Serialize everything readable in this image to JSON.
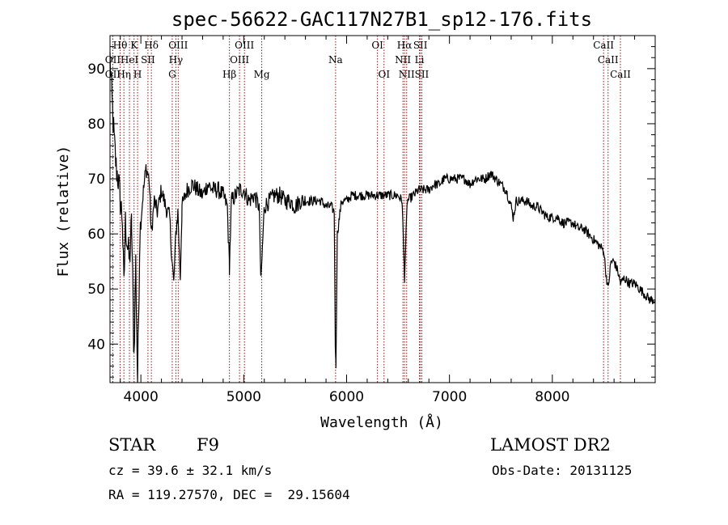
{
  "chart_data": {
    "type": "line",
    "title": "spec-56622-GAC117N27B1_sp12-176.fits",
    "xlabel": "Wavelength (Å)",
    "ylabel": "Flux (relative)",
    "xlim": [
      3700,
      9000
    ],
    "ylim": [
      33,
      96
    ],
    "xticks": [
      4000,
      5000,
      6000,
      7000,
      8000
    ],
    "yticks": [
      40,
      50,
      60,
      70,
      80,
      90
    ],
    "grid": false,
    "series": [
      {
        "color": "#000000",
        "points": [
          [
            3700,
            92
          ],
          [
            3720,
            84
          ],
          [
            3740,
            77
          ],
          [
            3760,
            72
          ],
          [
            3780,
            70
          ],
          [
            3800,
            66
          ],
          [
            3820,
            63
          ],
          [
            3835,
            50
          ],
          [
            3850,
            62
          ],
          [
            3870,
            58
          ],
          [
            3889,
            55
          ],
          [
            3910,
            62
          ],
          [
            3933,
            38
          ],
          [
            3950,
            55
          ],
          [
            3968,
            33
          ],
          [
            3990,
            60
          ],
          [
            4020,
            67
          ],
          [
            4050,
            72
          ],
          [
            4080,
            70
          ],
          [
            4102,
            60
          ],
          [
            4130,
            66
          ],
          [
            4160,
            64
          ],
          [
            4200,
            68
          ],
          [
            4240,
            65
          ],
          [
            4280,
            63
          ],
          [
            4300,
            56
          ],
          [
            4320,
            51
          ],
          [
            4340,
            60
          ],
          [
            4360,
            64
          ],
          [
            4383,
            52
          ],
          [
            4400,
            65
          ],
          [
            4450,
            68
          ],
          [
            4500,
            69
          ],
          [
            4550,
            68
          ],
          [
            4600,
            67
          ],
          [
            4650,
            69
          ],
          [
            4700,
            68
          ],
          [
            4750,
            68
          ],
          [
            4800,
            67
          ],
          [
            4840,
            65
          ],
          [
            4861,
            54
          ],
          [
            4880,
            66
          ],
          [
            4920,
            67
          ],
          [
            4960,
            68
          ],
          [
            5000,
            68
          ],
          [
            5050,
            66
          ],
          [
            5100,
            67
          ],
          [
            5150,
            65
          ],
          [
            5167,
            51
          ],
          [
            5183,
            58
          ],
          [
            5200,
            65
          ],
          [
            5250,
            66
          ],
          [
            5300,
            67
          ],
          [
            5350,
            67
          ],
          [
            5400,
            66
          ],
          [
            5450,
            66
          ],
          [
            5500,
            65
          ],
          [
            5550,
            66
          ],
          [
            5600,
            66
          ],
          [
            5650,
            66
          ],
          [
            5700,
            66
          ],
          [
            5750,
            66
          ],
          [
            5800,
            65
          ],
          [
            5850,
            65
          ],
          [
            5880,
            64
          ],
          [
            5890,
            40
          ],
          [
            5896,
            36
          ],
          [
            5910,
            60
          ],
          [
            5950,
            66
          ],
          [
            6000,
            66
          ],
          [
            6050,
            67
          ],
          [
            6100,
            67
          ],
          [
            6150,
            67
          ],
          [
            6200,
            67
          ],
          [
            6250,
            67
          ],
          [
            6300,
            67
          ],
          [
            6350,
            67
          ],
          [
            6400,
            67
          ],
          [
            6450,
            67
          ],
          [
            6500,
            67
          ],
          [
            6540,
            66
          ],
          [
            6563,
            52
          ],
          [
            6590,
            66
          ],
          [
            6650,
            67
          ],
          [
            6700,
            68
          ],
          [
            6750,
            68
          ],
          [
            6800,
            68
          ],
          [
            6850,
            69
          ],
          [
            6900,
            69
          ],
          [
            6950,
            70
          ],
          [
            7000,
            70
          ],
          [
            7050,
            70
          ],
          [
            7100,
            70
          ],
          [
            7150,
            70
          ],
          [
            7200,
            69
          ],
          [
            7250,
            70
          ],
          [
            7300,
            70
          ],
          [
            7350,
            70
          ],
          [
            7400,
            71
          ],
          [
            7450,
            70
          ],
          [
            7500,
            69
          ],
          [
            7550,
            68
          ],
          [
            7600,
            65
          ],
          [
            7620,
            63
          ],
          [
            7650,
            66
          ],
          [
            7700,
            66
          ],
          [
            7750,
            66
          ],
          [
            7800,
            65
          ],
          [
            7850,
            65
          ],
          [
            7900,
            64
          ],
          [
            7950,
            63
          ],
          [
            8000,
            63
          ],
          [
            8050,
            63
          ],
          [
            8100,
            62
          ],
          [
            8150,
            62
          ],
          [
            8200,
            62
          ],
          [
            8250,
            61
          ],
          [
            8300,
            61
          ],
          [
            8350,
            60
          ],
          [
            8400,
            59
          ],
          [
            8450,
            58
          ],
          [
            8500,
            57
          ],
          [
            8520,
            53
          ],
          [
            8542,
            50
          ],
          [
            8570,
            55
          ],
          [
            8600,
            55
          ],
          [
            8640,
            53
          ],
          [
            8662,
            51
          ],
          [
            8700,
            52
          ],
          [
            8750,
            51
          ],
          [
            8800,
            51
          ],
          [
            8850,
            50
          ],
          [
            8900,
            49
          ],
          [
            8950,
            48
          ],
          [
            9000,
            48
          ]
        ]
      }
    ],
    "line_markers": {
      "color": "#8b1a1a",
      "lines": [
        {
          "label": "Hθ",
          "x": 3798,
          "row": 1
        },
        {
          "label": "OII",
          "x": 3727,
          "row": 2
        },
        {
          "label": "OII",
          "x": 3727,
          "row": 3
        },
        {
          "label": "Hη",
          "x": 3835,
          "row": 3
        },
        {
          "label": "HeI",
          "x": 3889,
          "row": 2
        },
        {
          "label": "K",
          "x": 3934,
          "row": 1
        },
        {
          "label": "SII",
          "x": 4069,
          "row": 2
        },
        {
          "label": "H",
          "x": 3968,
          "row": 3
        },
        {
          "label": "Hδ",
          "x": 4102,
          "row": 1
        },
        {
          "label": "OIII",
          "x": 4363,
          "row": 1
        },
        {
          "label": "Hγ",
          "x": 4340,
          "row": 2
        },
        {
          "label": "G",
          "x": 4305,
          "row": 3
        },
        {
          "label": "Hβ",
          "x": 4861,
          "row": 3
        },
        {
          "label": "OIII",
          "x": 5007,
          "row": 1
        },
        {
          "label": "OIII",
          "x": 4959,
          "row": 2
        },
        {
          "label": "Mg",
          "x": 5175,
          "row": 3
        },
        {
          "label": "Na",
          "x": 5893,
          "row": 2
        },
        {
          "label": "OI",
          "x": 6300,
          "row": 1
        },
        {
          "label": "OI",
          "x": 6364,
          "row": 3
        },
        {
          "label": "Hα",
          "x": 6563,
          "row": 1
        },
        {
          "label": "SII",
          "x": 6717,
          "row": 1
        },
        {
          "label": "NII",
          "x": 6548,
          "row": 2
        },
        {
          "label": "Li",
          "x": 6708,
          "row": 2
        },
        {
          "label": "NII",
          "x": 6584,
          "row": 3
        },
        {
          "label": "SII",
          "x": 6731,
          "row": 3
        },
        {
          "label": "CaII",
          "x": 8498,
          "row": 1
        },
        {
          "label": "CaII",
          "x": 8542,
          "row": 2
        },
        {
          "label": "CaII",
          "x": 8662,
          "row": 3
        }
      ]
    }
  },
  "info": {
    "class": "STAR",
    "subclass": "F9",
    "survey": "LAMOST DR2",
    "redshift": "cz = 39.6 ± 32.1 km/s",
    "obs_date": "Obs-Date: 20131125",
    "coords": "RA = 119.27570, DEC =  29.15604"
  }
}
